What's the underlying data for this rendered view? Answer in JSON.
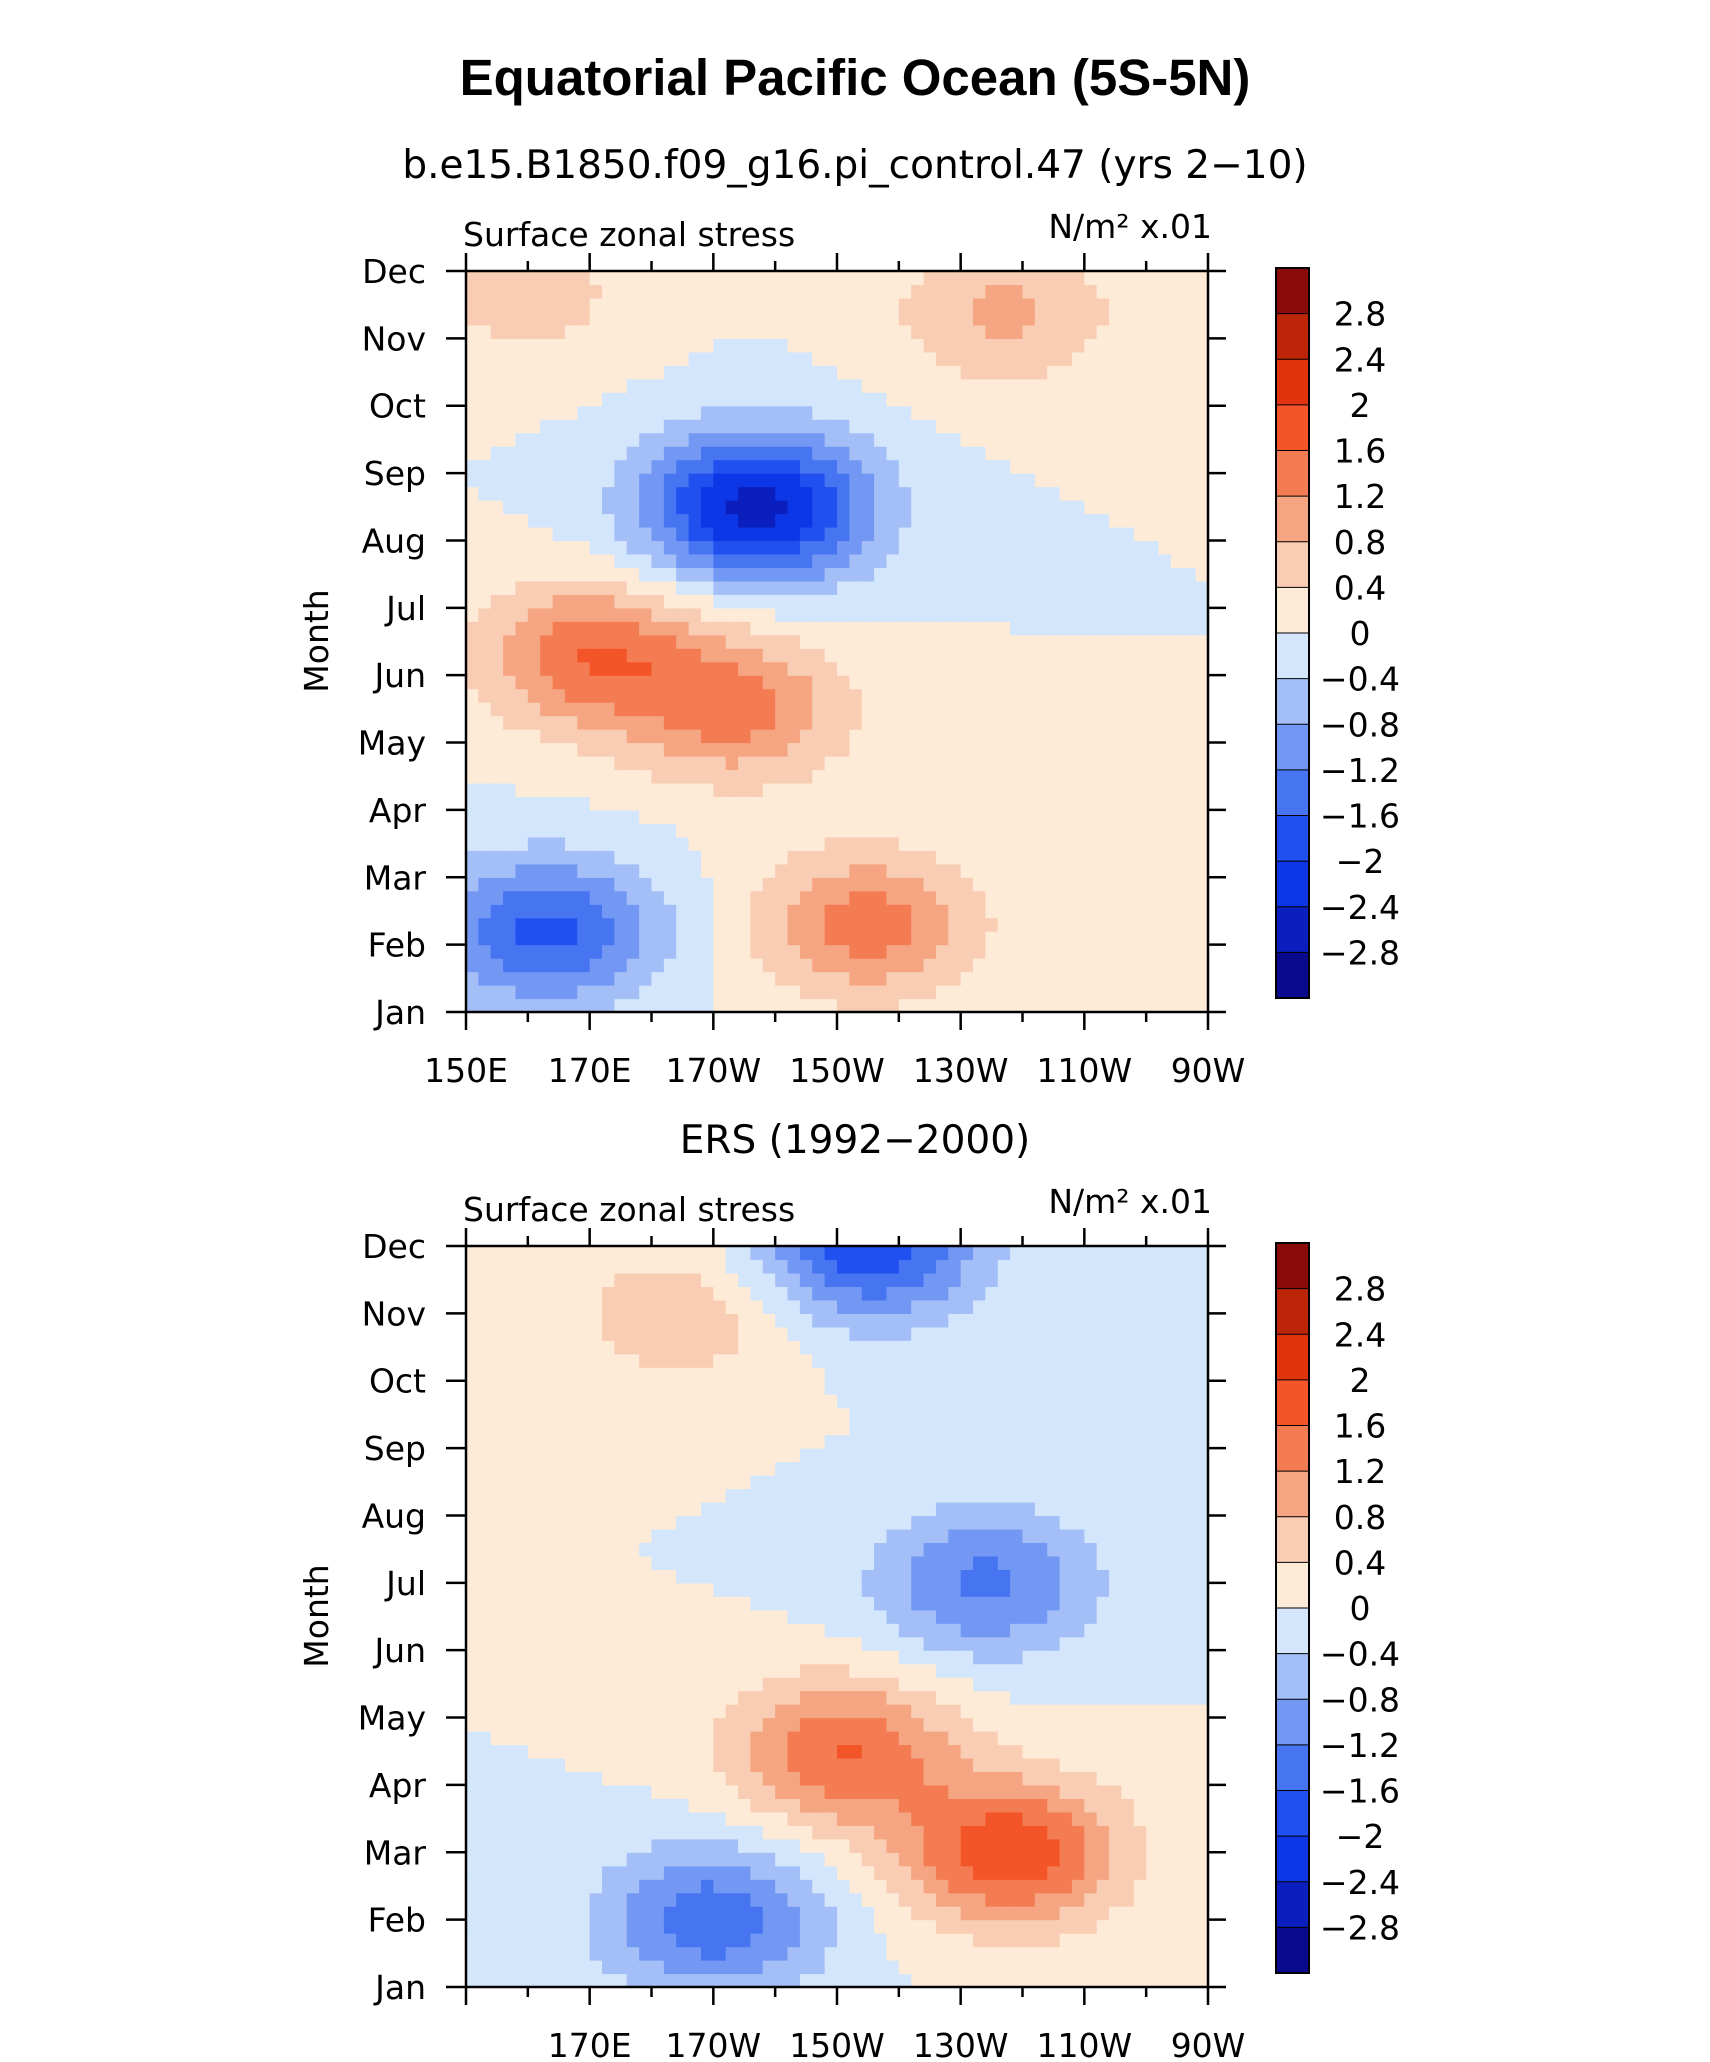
{
  "figure_title": "Equatorial Pacific Ocean (5S-5N)",
  "colors": {
    "levels": [
      "#0a0a8c",
      "#0a1fbe",
      "#0d37e6",
      "#2050f0",
      "#4775f2",
      "#7398f4",
      "#a4bff8",
      "#d3e6fb",
      "#fdebd8",
      "#f9cdb3",
      "#f6a582",
      "#f47c52",
      "#f35428",
      "#e2330f",
      "#bd2508",
      "#8b0b0b"
    ]
  },
  "chart_data": [
    {
      "type": "heatmap",
      "title": "b.e15.B1850.f09_g16.pi_control.47 (yrs 2−10)",
      "left_label": "Surface zonal stress",
      "units_label": "N/m² x.01",
      "ylabel": "Month",
      "x_tick_labels": [
        "150E",
        "170E",
        "170W",
        "150W",
        "130W",
        "110W",
        "90W"
      ],
      "y_tick_labels": [
        "Jan",
        "Feb",
        "Mar",
        "Apr",
        "May",
        "Jun",
        "Jul",
        "Aug",
        "Sep",
        "Oct",
        "Nov",
        "Dec"
      ],
      "x_range": [
        150,
        270
      ],
      "colorbar_labels": [
        "2.8",
        "2.4",
        "2",
        "1.6",
        "1.2",
        "0.8",
        "0.4",
        "0",
        "−0.4",
        "−0.8",
        "−1.2",
        "−1.6",
        "−2",
        "−2.4",
        "−2.8"
      ],
      "approx_features": [
        {
          "center": [
            197,
            7.5
          ],
          "value": -2.6
        },
        {
          "center": [
            170,
            5.3
          ],
          "value": 1.5
        },
        {
          "center": [
            194,
            4.5
          ],
          "value": 1.3
        },
        {
          "center": [
            215,
            1.3
          ],
          "value": 1.4
        },
        {
          "center": [
            163,
            1.2
          ],
          "value": -1.7
        },
        {
          "center": [
            160,
            10.7
          ],
          "value": 0.6
        },
        {
          "center": [
            237,
            10.4
          ],
          "value": 0.9
        }
      ]
    },
    {
      "type": "heatmap",
      "title": "ERS (1992−2000)",
      "left_label": "Surface zonal stress",
      "units_label": "N/m² x.01",
      "ylabel": "Month",
      "x_tick_labels": [
        "170E",
        "170W",
        "150W",
        "130W",
        "110W",
        "90W"
      ],
      "y_tick_labels": [
        "Jan",
        "Feb",
        "Mar",
        "Apr",
        "May",
        "Jun",
        "Jul",
        "Aug",
        "Sep",
        "Oct",
        "Nov",
        "Dec"
      ],
      "x_range": [
        150,
        270
      ],
      "colorbar_labels": [
        "2.8",
        "2.4",
        "2",
        "1.6",
        "1.2",
        "0.8",
        "0.4",
        "0",
        "−0.4",
        "−0.8",
        "−1.2",
        "−1.6",
        "−2",
        "−2.4",
        "−2.8"
      ],
      "approx_features": [
        {
          "center": [
            211,
            3.5
          ],
          "value": 1.6
        },
        {
          "center": [
            238,
            2.0
          ],
          "value": 1.9
        },
        {
          "center": [
            190,
            1.0
          ],
          "value": -1.5
        },
        {
          "center": [
            215,
            11.0
          ],
          "value": -1.9
        },
        {
          "center": [
            234,
            6.0
          ],
          "value": -1.3
        },
        {
          "center": [
            185,
            10.0
          ],
          "value": 0.7
        }
      ]
    }
  ]
}
